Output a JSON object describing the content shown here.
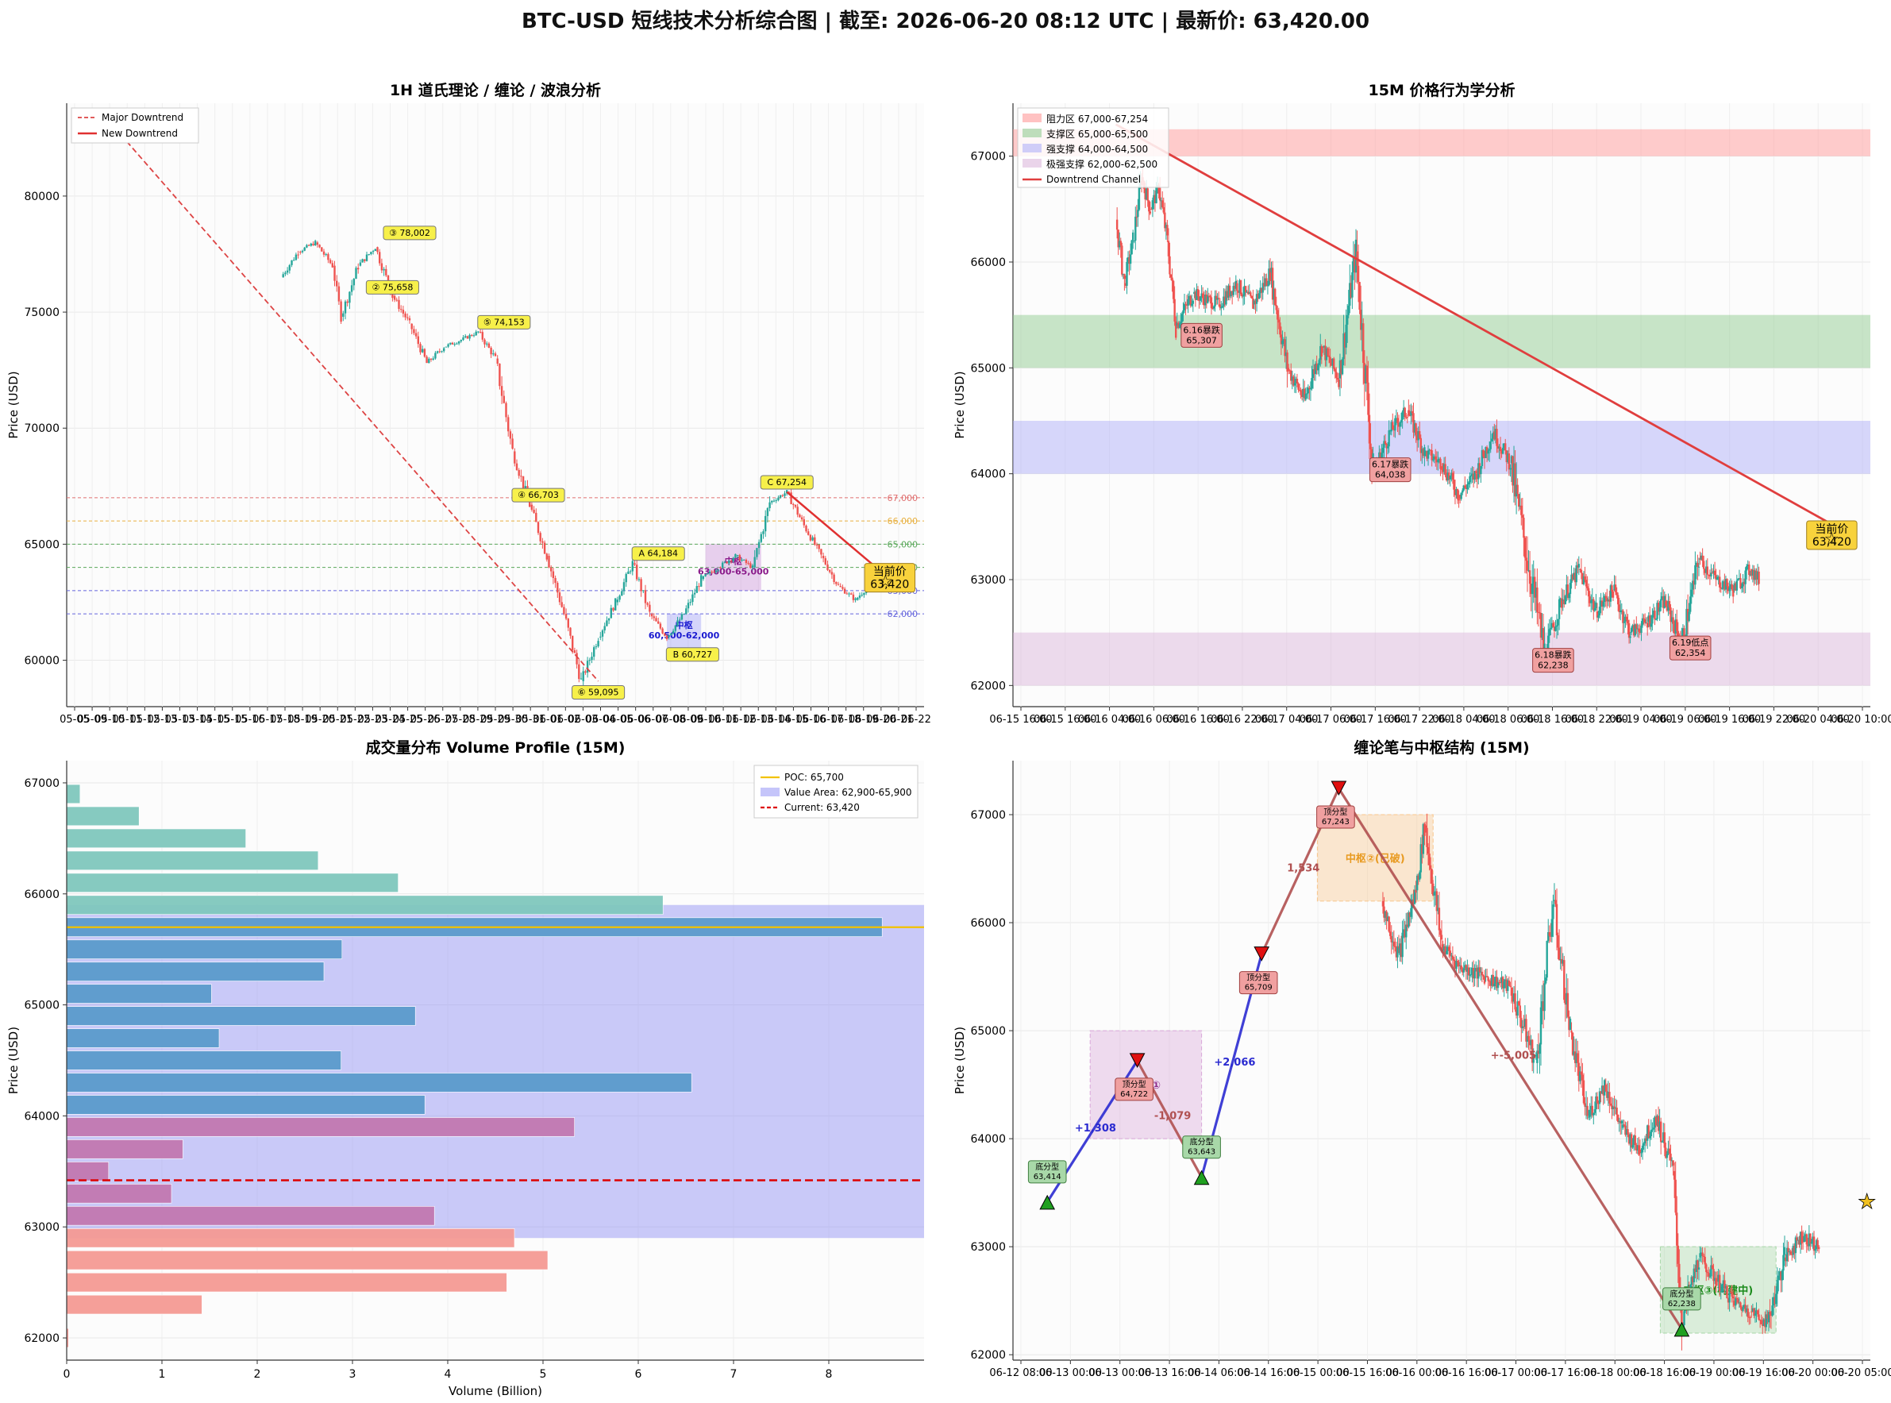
{
  "title": "BTC-USD 短线技术分析综合图 | 截至: 2026-06-20 08:12 UTC | 最新价: 63,420.00",
  "colors": {
    "up": "#26a69a",
    "down": "#ef5350",
    "teal": "#7fc7bd",
    "blue": "#5b9bcb",
    "pink": "#c278b0",
    "salmon": "#f49a94",
    "poc": "#f2c200",
    "va": "#8c8cf5",
    "current": "#dd0000"
  },
  "chart_data": [
    {
      "type": "line",
      "title": "1H 道氏理论 / 缠论 / 波浪分析",
      "ylabel": "Price (USD)",
      "ylim": [
        58000,
        84000
      ],
      "yticks": [
        60000,
        65000,
        70000,
        75000,
        80000
      ],
      "ytick_labels": [
        "60000",
        "65000",
        "70000",
        "75000",
        "80000"
      ],
      "xtick_labels": [
        "05-05",
        "05-09",
        "05-10",
        "05-11",
        "05-12",
        "05-13",
        "05-13",
        "05-14",
        "05-15",
        "05-15",
        "05-16",
        "05-17",
        "05-18",
        "05-19",
        "05-20",
        "05-21",
        "05-22",
        "05-23",
        "05-24",
        "05-25",
        "05-26",
        "05-27",
        "05-28",
        "05-29",
        "05-29",
        "05-30",
        "05-31",
        "06-01",
        "06-02",
        "06-03",
        "06-04",
        "06-05",
        "06-06",
        "06-07",
        "06-08",
        "06-09",
        "06-10",
        "06-11",
        "06-12",
        "06-13",
        "06-14",
        "06-15",
        "06-16",
        "06-17",
        "06-18",
        "06-19",
        "06-20",
        "06-21",
        "06-22"
      ],
      "legend": [
        "Major Downtrend",
        "New Downtrend"
      ],
      "legend_position": "top-left",
      "price_path": [
        [
          0.25,
          76500
        ],
        [
          0.27,
          77600
        ],
        [
          0.29,
          78000
        ],
        [
          0.31,
          77000
        ],
        [
          0.32,
          74800
        ],
        [
          0.34,
          77000
        ],
        [
          0.36,
          77800
        ],
        [
          0.38,
          75700
        ],
        [
          0.4,
          74500
        ],
        [
          0.42,
          72800
        ],
        [
          0.44,
          73500
        ],
        [
          0.46,
          73800
        ],
        [
          0.48,
          74150
        ],
        [
          0.5,
          73000
        ],
        [
          0.52,
          69000
        ],
        [
          0.54,
          66700
        ],
        [
          0.56,
          64500
        ],
        [
          0.58,
          62000
        ],
        [
          0.6,
          59100
        ],
        [
          0.62,
          61000
        ],
        [
          0.64,
          62500
        ],
        [
          0.66,
          64180
        ],
        [
          0.68,
          62000
        ],
        [
          0.7,
          61000
        ],
        [
          0.72,
          62000
        ],
        [
          0.74,
          63500
        ],
        [
          0.76,
          64000
        ],
        [
          0.78,
          64500
        ],
        [
          0.8,
          64000
        ],
        [
          0.82,
          66800
        ],
        [
          0.84,
          67250
        ],
        [
          0.86,
          65800
        ],
        [
          0.88,
          64500
        ],
        [
          0.9,
          63200
        ],
        [
          0.92,
          62600
        ],
        [
          0.94,
          63420
        ]
      ],
      "major_downtrend": [
        [
          0.05,
          83200
        ],
        [
          0.62,
          59100
        ]
      ],
      "new_downtrend": [
        [
          0.84,
          67250
        ],
        [
          0.96,
          63500
        ]
      ],
      "hlines": [
        {
          "value": 67000,
          "label": "67,000",
          "color": "#e07070"
        },
        {
          "value": 66000,
          "label": "66,000",
          "color": "#e8b040"
        },
        {
          "value": 65000,
          "label": "65,000",
          "color": "#5aa85a"
        },
        {
          "value": 64000,
          "label": "64,000",
          "color": "#5aa85a"
        },
        {
          "value": 63000,
          "label": "63,000",
          "color": "#6666dd"
        },
        {
          "value": 62000,
          "label": "62,000",
          "color": "#6666dd"
        }
      ],
      "zones": [
        {
          "x": [
            0.745,
            0.81
          ],
          "y": [
            63000,
            65000
          ],
          "label": "中枢",
          "sub": "63,000-65,000",
          "color": "#c07ad0"
        },
        {
          "x": [
            0.7,
            0.74
          ],
          "y": [
            60500,
            62000
          ],
          "label": "中枢",
          "sub": "60,500-62,000",
          "color": "#8c8cf5"
        }
      ],
      "wave_labels": [
        {
          "x": 0.4,
          "y": 78002,
          "text": "③ 78,002"
        },
        {
          "x": 0.38,
          "y": 75658,
          "text": "② 75,658"
        },
        {
          "x": 0.51,
          "y": 74153,
          "text": "⑤ 74,153"
        },
        {
          "x": 0.55,
          "y": 66703,
          "text": "④ 66,703"
        },
        {
          "x": 0.62,
          "y": 59095,
          "text": "⑥ 59,095"
        },
        {
          "x": 0.69,
          "y": 64184,
          "text": "A 64,184"
        },
        {
          "x": 0.73,
          "y": 60727,
          "text": "B 60,727"
        },
        {
          "x": 0.84,
          "y": 67254,
          "text": "C 67,254"
        }
      ],
      "current_price_label": "当前价\n63,420",
      "current_price": 63420
    },
    {
      "type": "line",
      "title": "15M 价格行为学分析",
      "ylabel": "Price (USD)",
      "ylim": [
        61800,
        67500
      ],
      "yticks": [
        62000,
        63000,
        64000,
        65000,
        66000,
        67000
      ],
      "ytick_labels": [
        "62000",
        "63000",
        "64000",
        "65000",
        "66000",
        "67000"
      ],
      "xtick_labels": [
        "06-15 16:00",
        "06-15 16:00",
        "06-16 04:00",
        "06-16 06:00",
        "06-16 16:00",
        "06-16 22:00",
        "06-17 04:00",
        "06-17 06:00",
        "06-17 16:00",
        "06-17 22:00",
        "06-18 04:00",
        "06-18 06:00",
        "06-18 16:00",
        "06-18 22:00",
        "06-19 04:00",
        "06-19 06:00",
        "06-19 16:00",
        "06-19 22:00",
        "06-20 04:00",
        "06-20 10:00"
      ],
      "legend": [
        "阻力区 67,000-67,254",
        "支撑区 65,000-65,500",
        "强支撑 64,000-64,500",
        "极强支撑 62,000-62,500",
        "Downtrend Channel"
      ],
      "legend_position": "top-left",
      "bands": [
        {
          "y": [
            67000,
            67254
          ],
          "color": "#ff9a9a"
        },
        {
          "y": [
            65000,
            65500
          ],
          "color": "#92cc92"
        },
        {
          "y": [
            64000,
            64500
          ],
          "color": "#b0b0f8"
        },
        {
          "y": [
            62000,
            62500
          ],
          "color": "#dcb8dc"
        }
      ],
      "price_path": [
        [
          0.12,
          66400
        ],
        [
          0.13,
          65800
        ],
        [
          0.14,
          66200
        ],
        [
          0.15,
          66800
        ],
        [
          0.16,
          66500
        ],
        [
          0.17,
          66700
        ],
        [
          0.18,
          66200
        ],
        [
          0.19,
          65400
        ],
        [
          0.21,
          65700
        ],
        [
          0.24,
          65600
        ],
        [
          0.26,
          65800
        ],
        [
          0.28,
          65600
        ],
        [
          0.3,
          65900
        ],
        [
          0.32,
          65000
        ],
        [
          0.34,
          64700
        ],
        [
          0.36,
          65200
        ],
        [
          0.38,
          64900
        ],
        [
          0.4,
          66100
        ],
        [
          0.42,
          64000
        ],
        [
          0.44,
          64400
        ],
        [
          0.46,
          64600
        ],
        [
          0.48,
          64200
        ],
        [
          0.5,
          64100
        ],
        [
          0.52,
          63800
        ],
        [
          0.54,
          64000
        ],
        [
          0.56,
          64400
        ],
        [
          0.58,
          64100
        ],
        [
          0.62,
          62300
        ],
        [
          0.64,
          62800
        ],
        [
          0.66,
          63100
        ],
        [
          0.68,
          62700
        ],
        [
          0.7,
          62900
        ],
        [
          0.72,
          62500
        ],
        [
          0.74,
          62600
        ],
        [
          0.76,
          62800
        ],
        [
          0.78,
          62400
        ],
        [
          0.8,
          63200
        ],
        [
          0.82,
          63000
        ],
        [
          0.84,
          62900
        ],
        [
          0.86,
          63100
        ],
        [
          0.87,
          63000
        ]
      ],
      "channel": [
        [
          0.12,
          67300
        ],
        [
          0.96,
          63500
        ]
      ],
      "labels": [
        {
          "x": 0.22,
          "y": 65307,
          "text": "6.16暴跌\n65,307"
        },
        {
          "x": 0.44,
          "y": 64038,
          "text": "6.17暴跌\n64,038"
        },
        {
          "x": 0.63,
          "y": 62238,
          "text": "6.18暴跌\n62,238"
        },
        {
          "x": 0.79,
          "y": 62354,
          "text": "6.19低点\n62,354"
        }
      ],
      "current_price_label": "当前价\n63,420",
      "current_price": 63420
    },
    {
      "type": "bar",
      "title": "成交量分布 Volume Profile (15M)",
      "xlabel": "Volume (Billion)",
      "ylabel": "Price (USD)",
      "xlim": [
        0,
        9
      ],
      "ylim": [
        61800,
        67200
      ],
      "xticks": [
        0,
        1,
        2,
        3,
        4,
        5,
        6,
        7,
        8
      ],
      "xtick_labels": [
        "0",
        "1",
        "2",
        "3",
        "4",
        "5",
        "6",
        "7",
        "8"
      ],
      "yticks": [
        62000,
        63000,
        64000,
        65000,
        66000,
        67000
      ],
      "ytick_labels": [
        "62000",
        "63000",
        "64000",
        "65000",
        "66000",
        "67000"
      ],
      "legend": [
        "POC: 65,700",
        "Value Area: 62,900-65,900",
        "Current: 63,420"
      ],
      "legend_position": "top-right",
      "poc": 65700,
      "value_area": [
        62900,
        65900
      ],
      "current": 63420,
      "bins": [
        {
          "price": 62000,
          "volume": 0.02,
          "color": "salmon"
        },
        {
          "price": 62300,
          "volume": 1.42,
          "color": "salmon"
        },
        {
          "price": 62500,
          "volume": 4.62,
          "color": "salmon"
        },
        {
          "price": 62700,
          "volume": 5.05,
          "color": "salmon"
        },
        {
          "price": 62900,
          "volume": 4.7,
          "color": "salmon"
        },
        {
          "price": 63100,
          "volume": 3.86,
          "color": "pink"
        },
        {
          "price": 63300,
          "volume": 1.1,
          "color": "pink"
        },
        {
          "price": 63500,
          "volume": 0.44,
          "color": "pink"
        },
        {
          "price": 63700,
          "volume": 1.22,
          "color": "pink"
        },
        {
          "price": 63900,
          "volume": 5.33,
          "color": "pink"
        },
        {
          "price": 64100,
          "volume": 3.76,
          "color": "blue"
        },
        {
          "price": 64300,
          "volume": 6.56,
          "color": "blue"
        },
        {
          "price": 64500,
          "volume": 2.88,
          "color": "blue"
        },
        {
          "price": 64700,
          "volume": 1.6,
          "color": "blue"
        },
        {
          "price": 64900,
          "volume": 3.66,
          "color": "blue"
        },
        {
          "price": 65100,
          "volume": 1.52,
          "color": "blue"
        },
        {
          "price": 65300,
          "volume": 2.7,
          "color": "blue"
        },
        {
          "price": 65500,
          "volume": 2.89,
          "color": "blue"
        },
        {
          "price": 65700,
          "volume": 8.56,
          "color": "blue"
        },
        {
          "price": 65900,
          "volume": 6.26,
          "color": "teal"
        },
        {
          "price": 66100,
          "volume": 3.48,
          "color": "teal"
        },
        {
          "price": 66300,
          "volume": 2.64,
          "color": "teal"
        },
        {
          "price": 66500,
          "volume": 1.88,
          "color": "teal"
        },
        {
          "price": 66700,
          "volume": 0.76,
          "color": "teal"
        },
        {
          "price": 66900,
          "volume": 0.14,
          "color": "teal"
        }
      ]
    },
    {
      "type": "line",
      "title": "缠论笔与中枢结构 (15M)",
      "ylabel": "Price (USD)",
      "ylim": [
        61950,
        67500
      ],
      "yticks": [
        62000,
        63000,
        64000,
        65000,
        66000,
        67000
      ],
      "ytick_labels": [
        "62000",
        "63000",
        "64000",
        "65000",
        "66000",
        "67000"
      ],
      "xtick_labels": [
        "06-12 08:00",
        "06-13 00:00",
        "06-13 00:00",
        "06-13 16:00",
        "06-14 06:00",
        "06-14 16:00",
        "06-15 00:00",
        "06-15 16:00",
        "06-16 00:00",
        "06-16 16:00",
        "06-17 00:00",
        "06-17 16:00",
        "06-18 00:00",
        "06-18 16:00",
        "06-19 00:00",
        "06-19 16:00",
        "06-20 00:00",
        "06-20 05:00"
      ],
      "strokes": [
        {
          "from": [
            0.04,
            63414
          ],
          "to": [
            0.145,
            64722
          ],
          "label": "+1,308",
          "color": "#2a2ad0"
        },
        {
          "from": [
            0.145,
            64722
          ],
          "to": [
            0.22,
            63643
          ],
          "label": "-1,079",
          "color": "#b05050"
        },
        {
          "from": [
            0.22,
            63643
          ],
          "to": [
            0.29,
            65709
          ],
          "label": "+2,066",
          "color": "#2a2ad0"
        },
        {
          "from": [
            0.29,
            65709
          ],
          "to": [
            0.38,
            67243
          ],
          "label": "1,534",
          "color": "#b05050"
        },
        {
          "from": [
            0.38,
            67243
          ],
          "to": [
            0.78,
            62238
          ],
          "label": "+-5,005",
          "color": "#b05050"
        }
      ],
      "fractals": [
        {
          "x": 0.04,
          "y": 63414,
          "kind": "bottom",
          "text": "底分型\n63,414"
        },
        {
          "x": 0.145,
          "y": 64722,
          "kind": "top",
          "text": "顶分型\n64,722"
        },
        {
          "x": 0.22,
          "y": 63643,
          "kind": "bottom",
          "text": "底分型\n63,643"
        },
        {
          "x": 0.29,
          "y": 65709,
          "kind": "top",
          "text": "顶分型\n65,709"
        },
        {
          "x": 0.38,
          "y": 67243,
          "kind": "top",
          "text": "顶分型\n67,243"
        },
        {
          "x": 0.78,
          "y": 62238,
          "kind": "bottom",
          "text": "底分型\n62,238"
        }
      ],
      "centers": [
        {
          "x": [
            0.09,
            0.22
          ],
          "y": [
            64000,
            65000
          ],
          "label": "中枢①",
          "color": "#d9a8d9"
        },
        {
          "x": [
            0.355,
            0.49
          ],
          "y": [
            66200,
            67000
          ],
          "label": "中枢②(已破)",
          "color": "#f8c68c"
        },
        {
          "x": [
            0.755,
            0.89
          ],
          "y": [
            62200,
            63000
          ],
          "label": "中枢③(构建中)",
          "color": "#a8d8a8"
        }
      ],
      "price_path": [
        [
          0.43,
          66200
        ],
        [
          0.45,
          65700
        ],
        [
          0.47,
          66300
        ],
        [
          0.48,
          66900
        ],
        [
          0.5,
          65800
        ],
        [
          0.52,
          65600
        ],
        [
          0.55,
          65500
        ],
        [
          0.58,
          65400
        ],
        [
          0.61,
          64700
        ],
        [
          0.63,
          66200
        ],
        [
          0.65,
          65000
        ],
        [
          0.67,
          64200
        ],
        [
          0.69,
          64500
        ],
        [
          0.71,
          64100
        ],
        [
          0.73,
          63900
        ],
        [
          0.75,
          64200
        ],
        [
          0.77,
          63700
        ],
        [
          0.78,
          62300
        ],
        [
          0.8,
          62900
        ],
        [
          0.82,
          62700
        ],
        [
          0.84,
          62500
        ],
        [
          0.86,
          62400
        ],
        [
          0.88,
          62300
        ],
        [
          0.9,
          62900
        ],
        [
          0.92,
          63100
        ],
        [
          0.94,
          63000
        ]
      ],
      "current_price": 63420
    }
  ]
}
